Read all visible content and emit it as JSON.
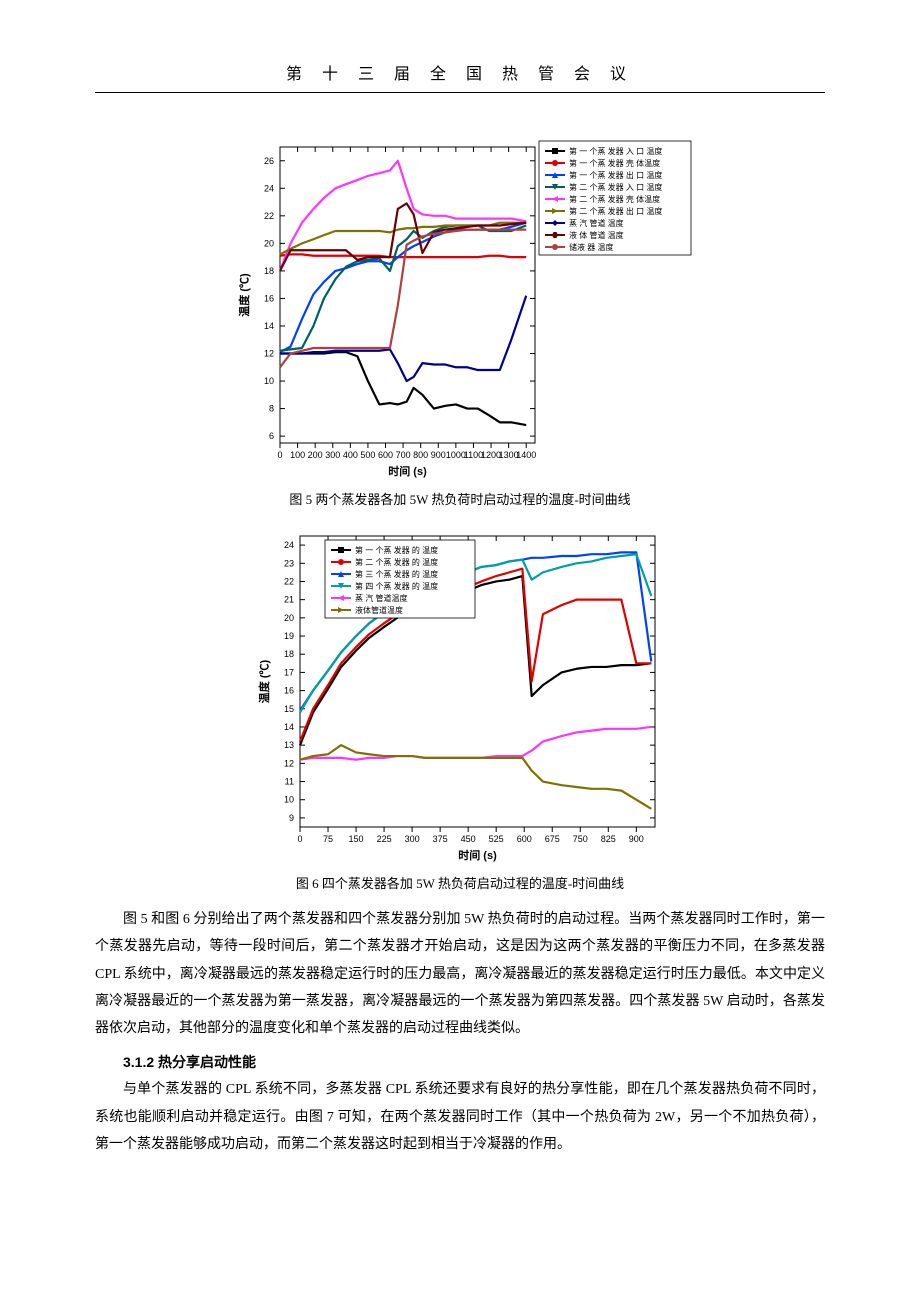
{
  "header": "第 十 三 届 全 国 热 管 会 议",
  "fig5": {
    "caption": "图 5 两个蒸发器各加 5W 热负荷时启动过程的温度-时间曲线",
    "xlabel": "时间 (s)",
    "ylabel": "温度 (℃)",
    "xlim": [
      0,
      1450
    ],
    "ylim": [
      5.5,
      27
    ],
    "xticks": [
      0,
      100,
      200,
      300,
      400,
      500,
      600,
      700,
      800,
      900,
      1000,
      1100,
      1200,
      1300,
      1400
    ],
    "yticks": [
      6,
      8,
      10,
      12,
      14,
      16,
      18,
      20,
      22,
      24,
      26
    ],
    "background_color": "#ffffff",
    "axis_color": "#000000",
    "legend_bg": "#ffffff",
    "legend_border": "#000000",
    "legend_fontsize": 8,
    "label_fontsize": 11,
    "tick_fontsize": 9,
    "line_width": 2.2,
    "legend": [
      {
        "label": "第 一 个蒸 发器  入 口 温度",
        "color": "#000000",
        "marker": "square"
      },
      {
        "label": "第 一 个蒸 发器  壳 体温度",
        "color": "#e00000",
        "marker": "circle"
      },
      {
        "label": "第 一 个蒸 发器  出 口 温度",
        "color": "#0040ff",
        "marker": "triangle-up"
      },
      {
        "label": "第 二 个蒸 发器  入 口 温度",
        "color": "#006060",
        "marker": "triangle-down"
      },
      {
        "label": "第 二 个蒸 发器  壳 体温度",
        "color": "#ff33ff",
        "marker": "triangle-left"
      },
      {
        "label": "第 二 个蒸 发器  出 口 温度",
        "color": "#807000",
        "marker": "triangle-right"
      },
      {
        "label": "蒸 汽  管道 温度",
        "color": "#000090",
        "marker": "diamond"
      },
      {
        "label": "液 体    管道 温度",
        "color": "#6a0000",
        "marker": "hex"
      },
      {
        "label": "储液 器 温度",
        "color": "#b04040",
        "marker": "circle"
      }
    ],
    "series": {
      "evap1_in": {
        "color": "#000000",
        "y": [
          12.0,
          12.0,
          12.0,
          12.0,
          12.0,
          12.1,
          12.1,
          11.8,
          10.0,
          8.3,
          8.4,
          8.3,
          8.5,
          9.5,
          9.0,
          8.0,
          8.2,
          8.3,
          8.0,
          8.0,
          7.5,
          7.0,
          7.0,
          6.8
        ]
      },
      "evap1_shell": {
        "color": "#e00000",
        "y": [
          19.1,
          19.2,
          19.2,
          19.1,
          19.1,
          19.1,
          19.1,
          19.1,
          19.1,
          19.1,
          19.0,
          19.0,
          19.0,
          19.0,
          19.0,
          19.0,
          19.0,
          19.0,
          19.0,
          19.0,
          19.1,
          19.1,
          19.0,
          19.0
        ]
      },
      "evap1_out": {
        "color": "#0040ff",
        "y": [
          12.1,
          12.5,
          14.5,
          16.3,
          17.2,
          18.0,
          18.2,
          18.5,
          18.7,
          18.7,
          18.5,
          19.0,
          19.5,
          19.8,
          20.1,
          20.5,
          20.8,
          21.0,
          21.0,
          21.0,
          21.0,
          21.0,
          21.2,
          21.5
        ]
      },
      "evap2_in": {
        "color": "#006060",
        "y": [
          12.2,
          12.3,
          12.4,
          14.0,
          16.0,
          17.4,
          18.3,
          18.7,
          18.8,
          18.9,
          18.0,
          19.8,
          20.3,
          20.9,
          20.4,
          20.9,
          21.2,
          21.3,
          21.3,
          21.3,
          20.9,
          20.9,
          20.9,
          21.3
        ]
      },
      "evap2_shell": {
        "color": "#ff33ff",
        "y": [
          18.0,
          20.0,
          21.5,
          22.5,
          23.3,
          24.0,
          24.3,
          24.6,
          24.9,
          25.1,
          25.3,
          26.0,
          24.0,
          22.5,
          22.1,
          22.0,
          22.0,
          21.8,
          21.8,
          21.8,
          21.8,
          21.8,
          21.8,
          21.6
        ]
      },
      "evap2_out": {
        "color": "#807000",
        "y": [
          19.2,
          19.6,
          20.0,
          20.3,
          20.6,
          20.9,
          20.9,
          20.9,
          20.9,
          20.9,
          20.8,
          21.0,
          21.1,
          21.1,
          21.2,
          21.2,
          21.3,
          21.3,
          21.3,
          21.3,
          21.3,
          21.5,
          21.5,
          21.5
        ]
      },
      "vapor": {
        "color": "#000090",
        "y": [
          12.0,
          12.0,
          12.0,
          12.1,
          12.1,
          12.2,
          12.2,
          12.2,
          12.2,
          12.2,
          12.3,
          11.3,
          10.0,
          10.3,
          11.3,
          11.2,
          11.2,
          11.0,
          11.0,
          10.8,
          10.8,
          10.8,
          13.0,
          16.2
        ]
      },
      "liquid": {
        "color": "#6a0000",
        "y": [
          18.0,
          19.5,
          19.5,
          19.5,
          19.5,
          19.5,
          19.5,
          18.8,
          19.0,
          19.0,
          19.0,
          22.5,
          22.9,
          22.1,
          19.3,
          20.8,
          21.0,
          21.1,
          21.2,
          21.3,
          21.3,
          21.3,
          21.4,
          21.5
        ]
      },
      "reservoir": {
        "color": "#b04040",
        "y": [
          11.0,
          12.0,
          12.2,
          12.4,
          12.4,
          12.4,
          12.4,
          12.4,
          12.4,
          12.4,
          12.4,
          15.5,
          19.9,
          20.2,
          20.5,
          20.7,
          20.8,
          20.9,
          21.0,
          21.0,
          21.0,
          21.0,
          21.0,
          21.0
        ]
      }
    },
    "series_x": [
      0,
      60,
      125,
      190,
      250,
      315,
      375,
      440,
      500,
      565,
      625,
      670,
      720,
      760,
      810,
      875,
      940,
      1000,
      1065,
      1125,
      1190,
      1250,
      1315,
      1400
    ]
  },
  "fig6": {
    "caption": "图 6 四个蒸发器各加 5W 热负荷启动过程的温度-时间曲线",
    "xlabel": "时间 (s)",
    "ylabel": "温度 (℃)",
    "xlim": [
      0,
      950
    ],
    "ylim": [
      8.5,
      24.5
    ],
    "xticks": [
      0,
      75,
      150,
      225,
      300,
      375,
      450,
      525,
      600,
      675,
      750,
      825,
      900
    ],
    "yticks": [
      9,
      10,
      11,
      12,
      13,
      14,
      15,
      16,
      17,
      18,
      19,
      20,
      21,
      22,
      23,
      24
    ],
    "background_color": "#ffffff",
    "axis_color": "#000000",
    "legend_bg": "#ffffff",
    "legend_border": "#000000",
    "legend_fontsize": 8,
    "label_fontsize": 11,
    "tick_fontsize": 9,
    "line_width": 2.2,
    "legend": [
      {
        "label": "第 一 个蒸 发器  的 温度",
        "color": "#000000",
        "marker": "square"
      },
      {
        "label": "第 二 个蒸 发器  的 温度",
        "color": "#e00000",
        "marker": "circle"
      },
      {
        "label": "第 三 个蒸 发器  的 温度",
        "color": "#0040ff",
        "marker": "triangle-up"
      },
      {
        "label": "第 四 个蒸 发器  的 温度",
        "color": "#00a0a0",
        "marker": "triangle-down"
      },
      {
        "label": "蒸 汽  管道温度",
        "color": "#ff33ff",
        "marker": "triangle-left"
      },
      {
        "label": "液体管道温度",
        "color": "#807000",
        "marker": "triangle-right"
      }
    ],
    "series": {
      "evap1": {
        "color": "#000000",
        "y": [
          13.0,
          14.8,
          16.1,
          17.3,
          18.2,
          18.9,
          19.5,
          20.0,
          20.5,
          20.8,
          21.1,
          21.4,
          21.5,
          21.8,
          22.0,
          22.1,
          22.3,
          15.7,
          16.3,
          17.0,
          17.2,
          17.3,
          17.3,
          17.4,
          17.4,
          17.5
        ]
      },
      "evap2": {
        "color": "#e00000",
        "y": [
          13.2,
          15.0,
          16.3,
          17.5,
          18.4,
          19.1,
          19.7,
          20.2,
          20.6,
          21.0,
          21.3,
          21.5,
          21.7,
          22.0,
          22.3,
          22.5,
          22.7,
          16.5,
          20.2,
          20.7,
          21.0,
          21.0,
          21.0,
          21.0,
          17.5,
          17.5
        ]
      },
      "evap3": {
        "color": "#0040ff",
        "y": [
          14.9,
          16.0,
          17.1,
          18.1,
          19.0,
          19.7,
          20.3,
          20.8,
          21.2,
          21.6,
          22.0,
          22.3,
          22.5,
          22.8,
          22.9,
          23.1,
          23.2,
          23.3,
          23.3,
          23.4,
          23.4,
          23.5,
          23.5,
          23.6,
          23.6,
          17.6
        ]
      },
      "evap4": {
        "color": "#00a0a0",
        "y": [
          14.8,
          16.0,
          17.1,
          18.1,
          19.0,
          19.7,
          20.3,
          20.8,
          21.2,
          21.6,
          22.0,
          22.3,
          22.5,
          22.8,
          22.9,
          23.1,
          23.2,
          22.1,
          22.5,
          22.8,
          23.0,
          23.1,
          23.3,
          23.4,
          23.5,
          21.2
        ]
      },
      "vapor": {
        "color": "#ff33ff",
        "y": [
          12.2,
          12.3,
          12.3,
          12.3,
          12.2,
          12.3,
          12.3,
          12.4,
          12.4,
          12.3,
          12.3,
          12.3,
          12.3,
          12.3,
          12.4,
          12.4,
          12.4,
          12.7,
          13.2,
          13.5,
          13.7,
          13.8,
          13.9,
          13.9,
          13.9,
          14.0
        ]
      },
      "liquid": {
        "color": "#807000",
        "y": [
          12.2,
          12.4,
          12.5,
          13.0,
          12.6,
          12.5,
          12.4,
          12.4,
          12.4,
          12.3,
          12.3,
          12.3,
          12.3,
          12.3,
          12.3,
          12.3,
          12.3,
          11.6,
          11.0,
          10.8,
          10.7,
          10.6,
          10.6,
          10.5,
          10.0,
          9.5
        ]
      }
    },
    "series_x": [
      0,
      35,
      75,
      110,
      150,
      185,
      225,
      260,
      300,
      335,
      375,
      410,
      450,
      485,
      525,
      560,
      595,
      620,
      650,
      700,
      740,
      780,
      820,
      860,
      900,
      940
    ]
  },
  "para1": "图 5 和图 6 分别给出了两个蒸发器和四个蒸发器分别加 5W 热负荷时的启动过程。当两个蒸发器同时工作时，第一个蒸发器先启动，等待一段时间后，第二个蒸发器才开始启动，这是因为这两个蒸发器的平衡压力不同，在多蒸发器 CPL 系统中，离冷凝器最远的蒸发器稳定运行时的压力最高，离冷凝器最近的蒸发器稳定运行时压力最低。本文中定义离冷凝器最近的一个蒸发器为第一蒸发器，离冷凝器最远的一个蒸发器为第四蒸发器。四个蒸发器 5W 启动时，各蒸发器依次启动，其他部分的温度变化和单个蒸发器的启动过程曲线类似。",
  "subhead312": "3.1.2 热分享启动性能",
  "para2": "与单个蒸发器的 CPL 系统不同，多蒸发器 CPL 系统还要求有良好的热分享性能，即在几个蒸发器热负荷不同时，系统也能顺利启动并稳定运行。由图 7 可知，在两个蒸发器同时工作（其中一个热负荷为 2W，另一个不加热负荷），第一个蒸发器能够成功启动，而第二个蒸发器这时起到相当于冷凝器的作用。"
}
